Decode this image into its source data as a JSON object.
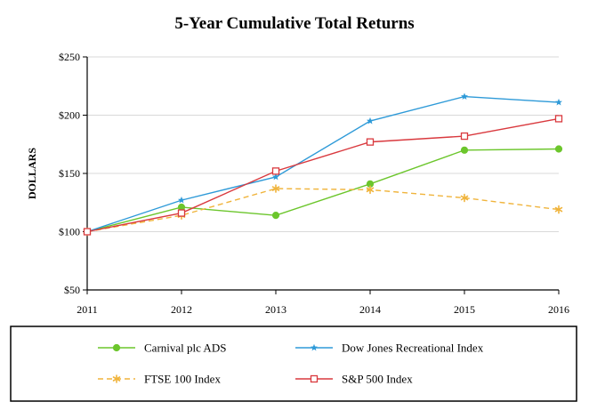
{
  "chart_data": {
    "type": "line",
    "title": "5-Year Cumulative Total Returns",
    "ylabel": "DOLLARS",
    "xlabel": "",
    "x": [
      "2011",
      "2012",
      "2013",
      "2014",
      "2015",
      "2016"
    ],
    "ylim": [
      50,
      250
    ],
    "yticks": [
      50,
      100,
      150,
      200,
      250
    ],
    "ytick_labels": [
      "$50",
      "$100",
      "$150",
      "$200",
      "$250"
    ],
    "grid": "horizontal",
    "legend_position": "bottom",
    "series": [
      {
        "name": "Carnival plc ADS",
        "values": [
          100,
          121,
          114,
          141,
          170,
          171
        ],
        "color": "#6cc62c",
        "style": "solid",
        "marker": "circle"
      },
      {
        "name": "Dow Jones Recreational Index",
        "values": [
          100,
          127,
          147,
          195,
          216,
          211
        ],
        "color": "#2e9ad8",
        "style": "solid",
        "marker": "star"
      },
      {
        "name": "FTSE 100 Index",
        "values": [
          100,
          114,
          137,
          136,
          129,
          119
        ],
        "color": "#f0b43c",
        "style": "dashed",
        "marker": "asterisk"
      },
      {
        "name": "S&P 500 Index",
        "values": [
          100,
          116,
          152,
          177,
          182,
          197
        ],
        "color": "#d9393e",
        "style": "solid",
        "marker": "square"
      }
    ]
  }
}
